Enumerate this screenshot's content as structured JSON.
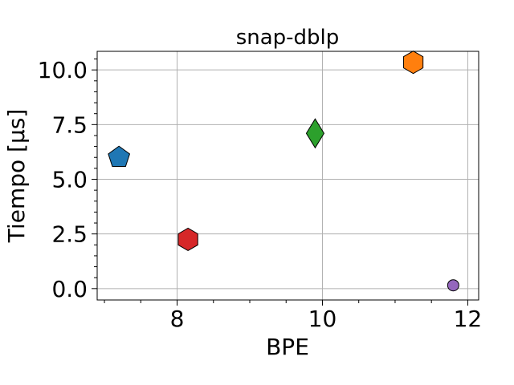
{
  "chart_data": {
    "type": "scatter",
    "title": "snap-dblp",
    "xlabel": "BPE",
    "ylabel": "Tiempo [μs]",
    "xlim": [
      6.9,
      12.15
    ],
    "ylim": [
      -0.52,
      10.85
    ],
    "xticks": [
      8,
      10,
      12
    ],
    "xtick_labels": [
      "8",
      "10",
      "12"
    ],
    "xminor": [
      7.0,
      7.5,
      8.5,
      9.0,
      9.5,
      10.5,
      11.0,
      11.5
    ],
    "yticks": [
      0,
      2.5,
      5.0,
      7.5,
      10.0
    ],
    "ytick_labels": [
      "0.0",
      "2.5",
      "5.0",
      "7.5",
      "10.0"
    ],
    "yminor": [
      0.5,
      1.0,
      1.5,
      2.0,
      3.0,
      3.5,
      4.0,
      4.5,
      5.5,
      6.0,
      6.5,
      7.0,
      8.0,
      8.5,
      9.0,
      9.5,
      10.5
    ],
    "grid": true,
    "series": [
      {
        "x": 7.2,
        "y": 6.0,
        "marker": "pentagon",
        "color": "#1f77b4"
      },
      {
        "x": 8.15,
        "y": 2.25,
        "marker": "hexagon",
        "color": "#d62728"
      },
      {
        "x": 9.9,
        "y": 7.1,
        "marker": "diamond",
        "color": "#2ca02c"
      },
      {
        "x": 11.25,
        "y": 10.35,
        "marker": "hexagon",
        "color": "#ff7f0e"
      },
      {
        "x": 11.8,
        "y": 0.15,
        "marker": "circle",
        "color": "#9467bd"
      }
    ]
  }
}
